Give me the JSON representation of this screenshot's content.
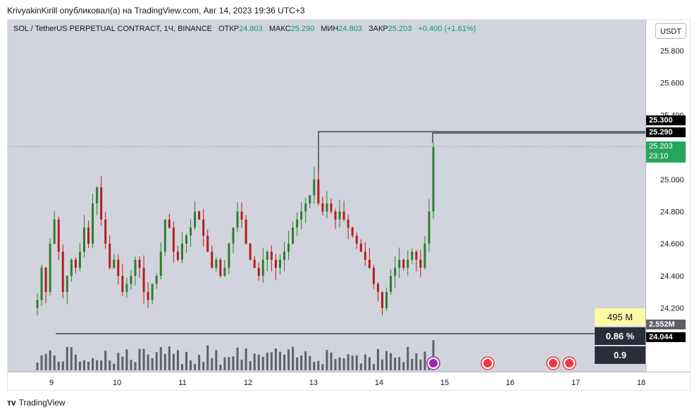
{
  "header": {
    "published": "KrivyakinKirill опубликовал(а) на TradingView.com, Авг 14, 2023 19:36 UTC+3"
  },
  "legend": {
    "symbol": "SOL / TetherUS PERPETUAL CONTRACT, 1Ч, BINANCE",
    "open_label": "ОТКР",
    "open": "24.803",
    "high_label": "МАКС",
    "high": "25.290",
    "low_label": "МИН",
    "low": "24.803",
    "close_label": "ЗАКР",
    "close": "25.203",
    "change": "+0.400 (+1.61%)"
  },
  "currency": "USDT",
  "price_axis": {
    "ticks": [
      "25.800",
      "25.600",
      "25.400",
      "25.200",
      "25.000",
      "24.800",
      "24.600",
      "24.400",
      "24.200"
    ]
  },
  "time_axis": {
    "ticks": [
      "9",
      "10",
      "11",
      "12",
      "13",
      "14",
      "15",
      "16",
      "17",
      "18"
    ]
  },
  "price_tags": {
    "upper_level": "25.300",
    "high_level": "25.290",
    "last_price": "25.203",
    "countdown": "23:10",
    "volume_level": "2.552M",
    "support_level": "24.044"
  },
  "stats": {
    "volume": "495 M",
    "percent": "0.86 %",
    "ratio": "0.9"
  },
  "colors": {
    "up": "#089981",
    "down": "#f23645",
    "up_candle": "#2e7d32",
    "down_candle": "#b71c1c",
    "volume": "#5d606b",
    "plot_bg": "#d1d4dc"
  },
  "footer": {
    "brand": "TradingView"
  },
  "chart_data": {
    "type": "candlestick",
    "ylim": [
      24.2,
      25.85
    ],
    "series": [
      {
        "values": [
          24.25,
          24.45,
          24.3,
          24.6,
          24.75,
          24.55,
          24.3,
          24.4,
          24.5,
          24.45,
          24.55,
          24.7,
          24.6,
          24.85,
          24.95,
          24.75,
          24.6,
          24.45,
          24.5,
          24.4,
          24.3,
          24.35,
          24.4,
          24.5,
          24.45,
          24.3,
          24.25,
          24.35,
          24.4,
          24.55,
          24.75,
          24.7,
          24.55,
          24.5,
          24.6,
          24.65,
          24.7,
          24.8,
          24.75,
          24.65,
          24.55,
          24.45,
          24.5,
          24.4,
          24.45,
          24.6,
          24.7,
          24.8,
          24.75,
          24.6,
          24.5,
          24.45,
          24.4,
          24.5,
          24.55,
          24.5,
          24.45,
          24.5,
          24.55,
          24.6,
          24.7,
          24.75,
          24.8,
          24.85,
          24.9,
          25.0,
          24.85,
          24.8,
          24.85,
          24.8,
          24.75,
          24.8,
          24.75,
          24.7,
          24.65,
          24.6,
          24.55,
          24.5,
          24.45,
          24.35,
          24.3,
          24.2,
          24.3,
          24.4,
          24.45,
          24.5,
          24.45,
          24.5,
          24.55,
          24.5,
          24.45,
          24.6,
          24.8,
          25.2
        ]
      }
    ]
  }
}
